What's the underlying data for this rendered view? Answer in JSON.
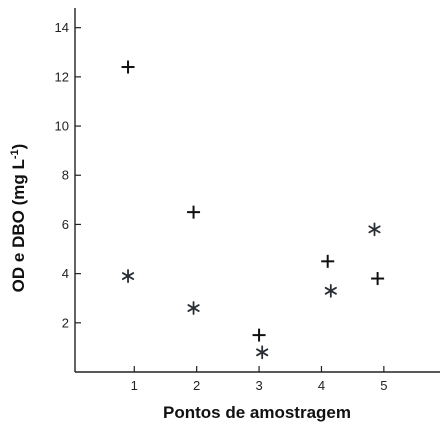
{
  "chart_data": {
    "type": "scatter",
    "title": "",
    "xlabel": "Pontos de amostragem",
    "ylabel": "OD e DBO (mg L",
    "ylabel_exponent": "-1",
    "ylabel_suffix": ")",
    "xlim": [
      0.05,
      5.9
    ],
    "ylim": [
      0,
      14.8
    ],
    "grid": false,
    "legend": "none",
    "x_ticks": [
      1,
      2,
      3,
      4,
      5
    ],
    "x_tick_labels": [
      "1",
      "2",
      "3",
      "4",
      "5"
    ],
    "y_ticks": [
      2,
      4,
      6,
      8,
      10,
      12,
      14
    ],
    "y_tick_labels": [
      "2",
      "4",
      "6",
      "8",
      "10",
      "12",
      "14"
    ],
    "series": [
      {
        "marker": "plus",
        "color": "#111111",
        "points": [
          {
            "x": 0.9,
            "y": 12.4
          },
          {
            "x": 1.95,
            "y": 6.5
          },
          {
            "x": 3.0,
            "y": 1.5
          },
          {
            "x": 4.1,
            "y": 4.5
          },
          {
            "x": 4.9,
            "y": 3.8
          }
        ]
      },
      {
        "marker": "asterisk",
        "color": "#2a2f36",
        "points": [
          {
            "x": 0.9,
            "y": 3.9
          },
          {
            "x": 1.95,
            "y": 2.6
          },
          {
            "x": 3.05,
            "y": 0.8
          },
          {
            "x": 4.15,
            "y": 3.3
          },
          {
            "x": 4.85,
            "y": 5.8
          }
        ]
      }
    ]
  }
}
